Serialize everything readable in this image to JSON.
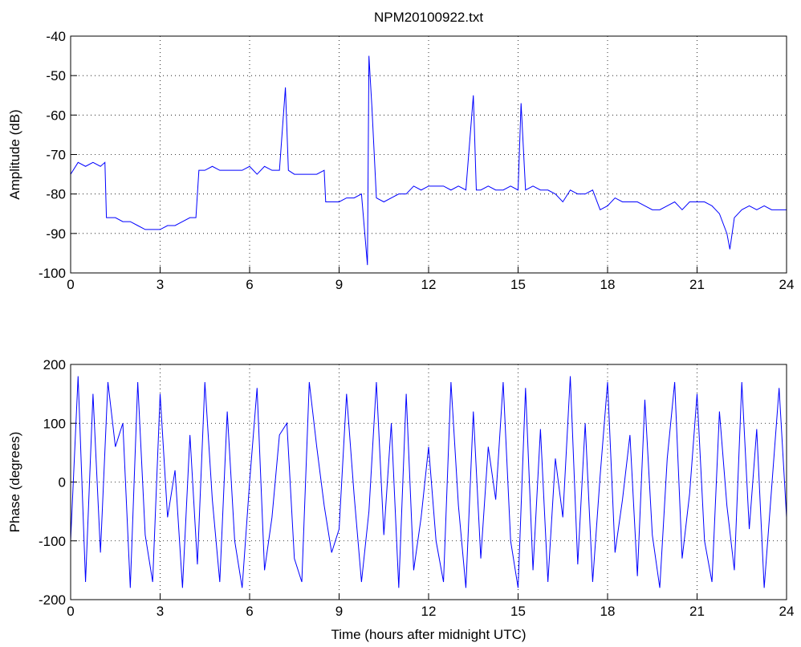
{
  "chart_data": [
    {
      "type": "line",
      "title": "NPM20100922.txt",
      "ylabel": "Amplitude (dB)",
      "x": [
        0,
        0.25,
        0.5,
        0.75,
        1,
        1.15,
        1.2,
        1.5,
        1.75,
        2,
        2.25,
        2.5,
        2.75,
        3,
        3.25,
        3.5,
        3.75,
        4,
        4.2,
        4.3,
        4.5,
        4.75,
        5,
        5.25,
        5.5,
        5.75,
        6,
        6.25,
        6.5,
        6.75,
        7,
        7.2,
        7.3,
        7.5,
        7.75,
        8,
        8.25,
        8.5,
        8.55,
        8.75,
        9,
        9.25,
        9.5,
        9.75,
        9.95,
        10,
        10.1,
        10.25,
        10.5,
        10.75,
        11,
        11.25,
        11.5,
        11.75,
        12,
        12.25,
        12.5,
        12.75,
        13,
        13.25,
        13.5,
        13.6,
        13.75,
        14,
        14.25,
        14.5,
        14.75,
        15,
        15.1,
        15.25,
        15.5,
        15.75,
        16,
        16.25,
        16.5,
        16.75,
        17,
        17.25,
        17.5,
        17.75,
        18,
        18.25,
        18.5,
        18.75,
        19,
        19.25,
        19.5,
        19.75,
        20,
        20.25,
        20.5,
        20.75,
        21,
        21.25,
        21.5,
        21.75,
        22,
        22.1,
        22.25,
        22.5,
        22.75,
        23,
        23.25,
        23.5,
        23.75,
        24
      ],
      "series": [
        {
          "color": "#0000ff",
          "values": [
            -75,
            -72,
            -73,
            -72,
            -73,
            -72,
            -86,
            -86,
            -87,
            -87,
            -88,
            -89,
            -89,
            -89,
            -88,
            -88,
            -87,
            -86,
            -86,
            -74,
            -74,
            -73,
            -74,
            -74,
            -74,
            -74,
            -73,
            -75,
            -73,
            -74,
            -74,
            -53,
            -74,
            -75,
            -75,
            -75,
            -75,
            -74,
            -82,
            -82,
            -82,
            -81,
            -81,
            -80,
            -98,
            -45,
            -58,
            -81,
            -82,
            -81,
            -80,
            -80,
            -78,
            -79,
            -78,
            -78,
            -78,
            -79,
            -78,
            -79,
            -55,
            -79,
            -79,
            -78,
            -79,
            -79,
            -78,
            -79,
            -57,
            -79,
            -78,
            -79,
            -79,
            -80,
            -82,
            -79,
            -80,
            -80,
            -79,
            -84,
            -83,
            -81,
            -82,
            -82,
            -82,
            -83,
            -84,
            -84,
            -83,
            -82,
            -84,
            -82,
            -82,
            -82,
            -83,
            -85,
            -90,
            -94,
            -86,
            -84,
            -83,
            -84,
            -83,
            -84,
            -84,
            -84
          ]
        }
      ],
      "xlim": [
        0,
        24
      ],
      "xticks": [
        0,
        3,
        6,
        9,
        12,
        15,
        18,
        21,
        24
      ],
      "ylim": [
        -100,
        -40
      ],
      "yticks": [
        -100,
        -90,
        -80,
        -70,
        -60,
        -50,
        -40
      ],
      "grid": true
    },
    {
      "type": "line",
      "xlabel": "Time (hours after midnight UTC)",
      "ylabel": "Phase (degrees)",
      "x": [
        0,
        0.25,
        0.5,
        0.75,
        1,
        1.25,
        1.5,
        1.75,
        2,
        2.25,
        2.5,
        2.75,
        3,
        3.25,
        3.5,
        3.75,
        4,
        4.25,
        4.5,
        4.75,
        5,
        5.25,
        5.5,
        5.75,
        6,
        6.25,
        6.5,
        6.75,
        7,
        7.25,
        7.5,
        7.75,
        8,
        8.25,
        8.5,
        8.75,
        9,
        9.25,
        9.5,
        9.75,
        10,
        10.25,
        10.5,
        10.75,
        11,
        11.25,
        11.5,
        11.75,
        12,
        12.25,
        12.5,
        12.75,
        13,
        13.25,
        13.5,
        13.75,
        14,
        14.25,
        14.5,
        14.75,
        15,
        15.25,
        15.5,
        15.75,
        16,
        16.25,
        16.5,
        16.75,
        17,
        17.25,
        17.5,
        17.75,
        18,
        18.25,
        18.5,
        18.75,
        19,
        19.25,
        19.5,
        19.75,
        20,
        20.25,
        20.5,
        20.75,
        21,
        21.25,
        21.5,
        21.75,
        22,
        22.25,
        22.5,
        22.75,
        23,
        23.25,
        23.5,
        23.75,
        24
      ],
      "series": [
        {
          "color": "#0000ff",
          "values": [
            -100,
            180,
            -170,
            150,
            -120,
            170,
            60,
            100,
            -180,
            170,
            -90,
            -170,
            150,
            -60,
            20,
            -180,
            80,
            -140,
            170,
            -30,
            -170,
            120,
            -100,
            -180,
            0,
            160,
            -150,
            -60,
            80,
            100,
            -130,
            -170,
            170,
            60,
            -40,
            -120,
            -80,
            150,
            -20,
            -170,
            -50,
            170,
            -90,
            100,
            -180,
            150,
            -150,
            -60,
            60,
            -100,
            -170,
            170,
            -40,
            -180,
            120,
            -130,
            60,
            -30,
            170,
            -100,
            -180,
            160,
            -150,
            90,
            -170,
            40,
            -60,
            180,
            -140,
            100,
            -170,
            10,
            170,
            -120,
            -30,
            80,
            -160,
            140,
            -90,
            -180,
            40,
            170,
            -130,
            -20,
            150,
            -100,
            -170,
            120,
            -40,
            -150,
            170,
            -80,
            90,
            -180,
            -10,
            160,
            -60
          ]
        }
      ],
      "xlim": [
        0,
        24
      ],
      "xticks": [
        0,
        3,
        6,
        9,
        12,
        15,
        18,
        21,
        24
      ],
      "ylim": [
        -200,
        200
      ],
      "yticks": [
        -200,
        -100,
        0,
        100,
        200
      ],
      "grid": true
    }
  ]
}
